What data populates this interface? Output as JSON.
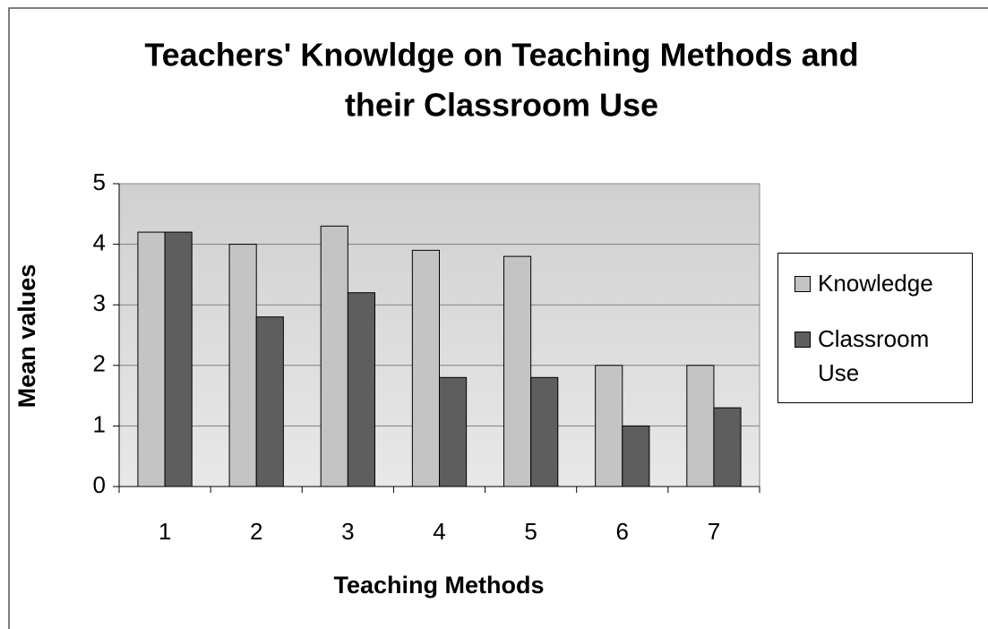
{
  "chart_data": {
    "type": "bar",
    "title": [
      "Teachers' Knowldge on Teaching Methods and",
      "their Classroom Use"
    ],
    "xlabel": "Teaching Methods",
    "ylabel": "Mean values",
    "categories": [
      "1",
      "2",
      "3",
      "4",
      "5",
      "6",
      "7"
    ],
    "series": [
      {
        "name": "Knowledge",
        "color": "#c4c4c4",
        "values": [
          4.2,
          4.0,
          4.3,
          3.9,
          3.8,
          2.0,
          2.0
        ]
      },
      {
        "name": "Classroom Use",
        "color": "#5e5e5e",
        "values": [
          4.2,
          2.8,
          3.2,
          1.8,
          1.8,
          1.0,
          1.3
        ]
      }
    ],
    "ylim": [
      0,
      5
    ],
    "yticks": [
      0,
      1,
      2,
      3,
      4,
      5
    ],
    "grid": true,
    "legend": "right"
  }
}
